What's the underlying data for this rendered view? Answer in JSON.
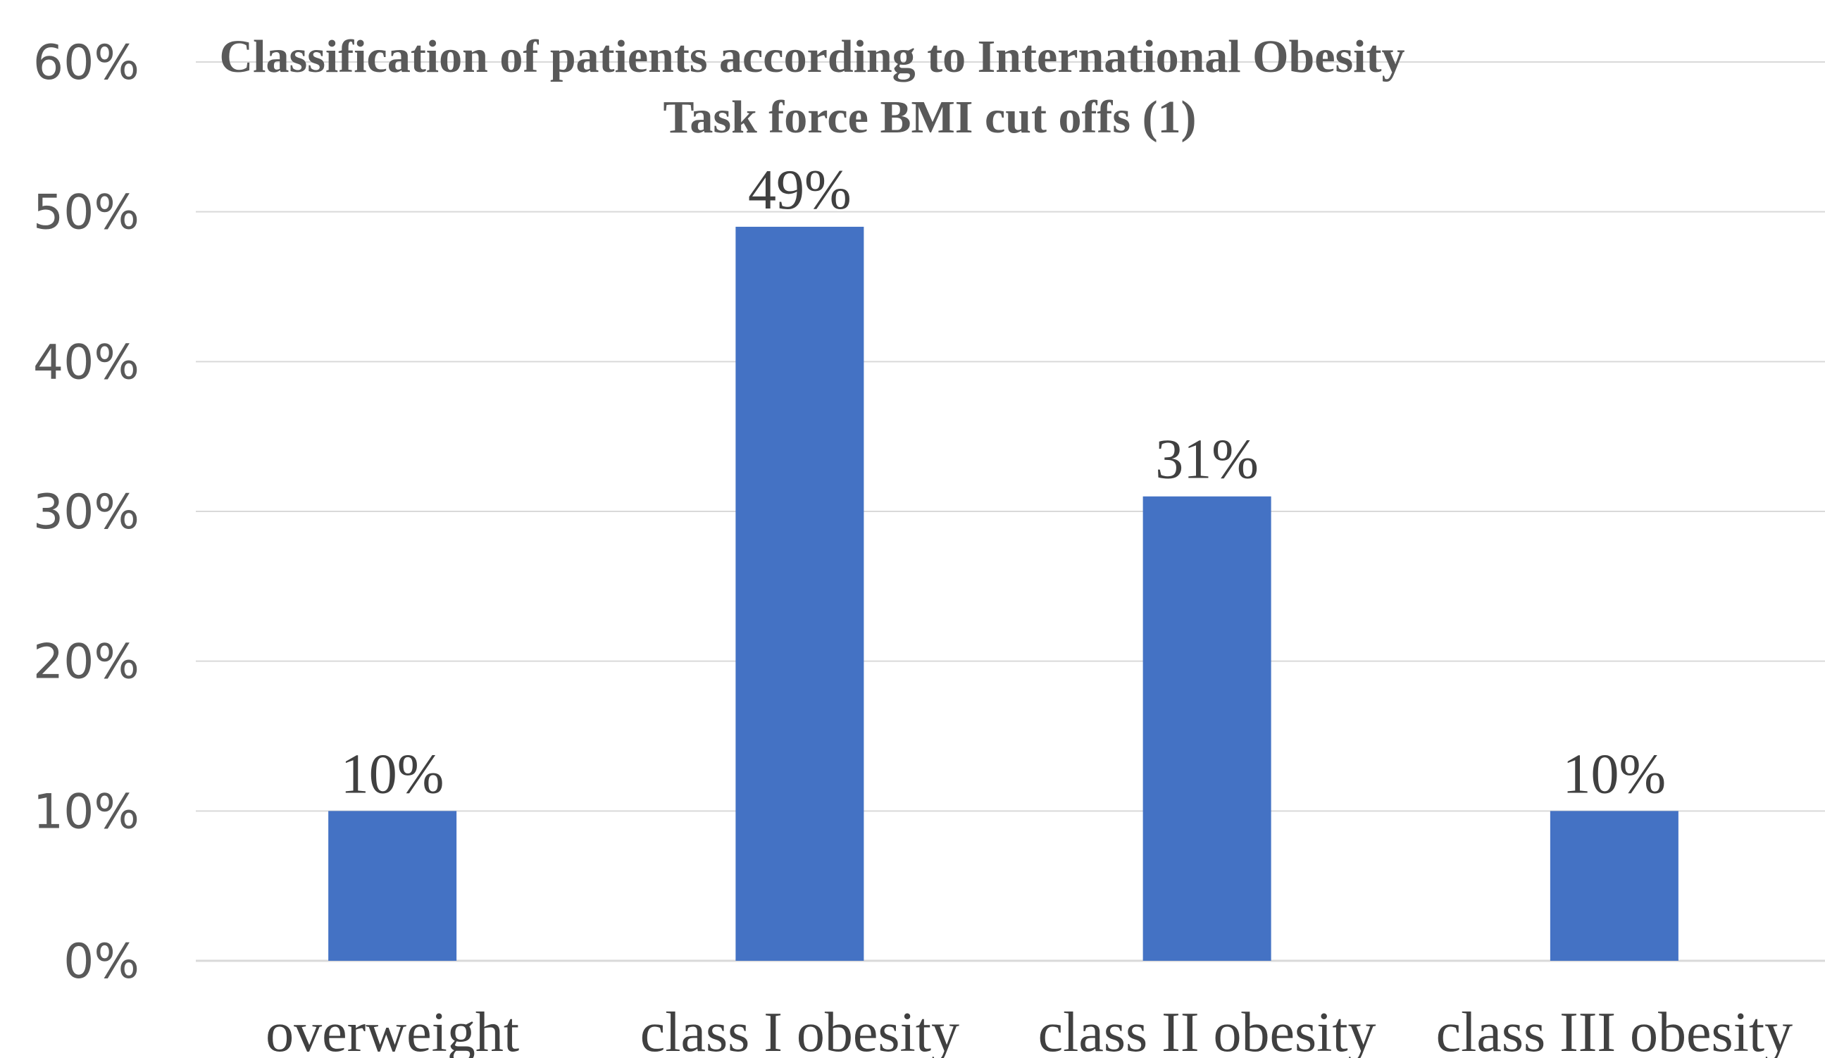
{
  "chart_data": {
    "type": "bar",
    "title_lines": [
      "Classification of patients according to International Obesity",
      "Task force BMI cut offs (1)"
    ],
    "categories": [
      "overweight",
      "class I obesity",
      "class II obesity",
      "class III obesity"
    ],
    "values": [
      10,
      49,
      31,
      10
    ],
    "data_labels": [
      "10%",
      "49%",
      "31%",
      "10%"
    ],
    "y_ticks": [
      0,
      10,
      20,
      30,
      40,
      50,
      60
    ],
    "y_tick_labels": [
      "0%",
      "10%",
      "20%",
      "30%",
      "40%",
      "50%",
      "60%"
    ],
    "ylim": [
      0,
      60
    ],
    "y_unit": "%",
    "grid": true,
    "legend": "none",
    "bar_color": "#4472C4"
  }
}
